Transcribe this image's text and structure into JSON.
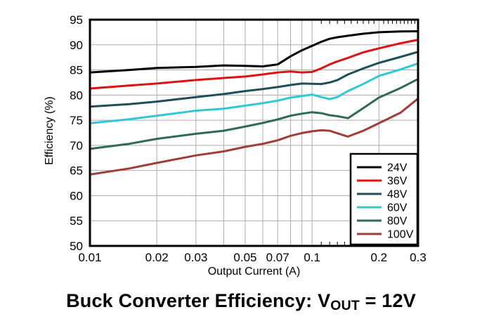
{
  "chart_data": {
    "type": "line",
    "title": {
      "prefix": "Buck Converter Efficiency: V",
      "subscript": "OUT",
      "suffix": " = 12V"
    },
    "xlabel": "Output Current (A)",
    "ylabel": "Efficiency (%)",
    "xscale": "log",
    "xlim": [
      0.01,
      0.3
    ],
    "ylim": [
      50,
      95
    ],
    "grid": true,
    "legend_position": "inside lower right",
    "x_ticks": [
      {
        "v": 0.01,
        "label": "0.01"
      },
      {
        "v": 0.02,
        "label": "0.02"
      },
      {
        "v": 0.03,
        "label": "0.03"
      },
      {
        "v": 0.05,
        "label": "0.05"
      },
      {
        "v": 0.07,
        "label": "0.07"
      },
      {
        "v": 0.1,
        "label": "0.1"
      },
      {
        "v": 0.2,
        "label": "0.2"
      },
      {
        "v": 0.3,
        "label": "0.3"
      }
    ],
    "y_ticks": [
      {
        "v": 50,
        "label": "50"
      },
      {
        "v": 55,
        "label": "55"
      },
      {
        "v": 60,
        "label": "60"
      },
      {
        "v": 65,
        "label": "65"
      },
      {
        "v": 70,
        "label": "70"
      },
      {
        "v": 75,
        "label": "75"
      },
      {
        "v": 80,
        "label": "80"
      },
      {
        "v": 85,
        "label": "85"
      },
      {
        "v": 90,
        "label": "90"
      },
      {
        "v": 95,
        "label": "95"
      }
    ],
    "x_gridlines": [
      0.02,
      0.03,
      0.04,
      0.05,
      0.06,
      0.07,
      0.08,
      0.09,
      0.1,
      0.2
    ],
    "y_gridlines": [
      55,
      60,
      65,
      70,
      75,
      80,
      85,
      90
    ],
    "x_minor_ticks": [
      0.11,
      0.12,
      0.13,
      0.14,
      0.15,
      0.16,
      0.17,
      0.18,
      0.19,
      0.21,
      0.22,
      0.23,
      0.24,
      0.25,
      0.26,
      0.27,
      0.28,
      0.29
    ],
    "x": [
      0.01,
      0.015,
      0.02,
      0.03,
      0.04,
      0.05,
      0.06,
      0.07,
      0.08,
      0.09,
      0.1,
      0.11,
      0.12,
      0.13,
      0.145,
      0.17,
      0.2,
      0.25,
      0.3
    ],
    "series": [
      {
        "name": "24V",
        "color": "#000000",
        "values": [
          84.5,
          85.0,
          85.4,
          85.6,
          85.9,
          85.8,
          85.7,
          86.1,
          87.7,
          88.9,
          89.8,
          90.6,
          91.2,
          91.5,
          91.8,
          92.2,
          92.5,
          92.65,
          92.7
        ]
      },
      {
        "name": "36V",
        "color": "#e01111",
        "values": [
          81.3,
          81.9,
          82.3,
          83.0,
          83.4,
          83.7,
          84.1,
          84.5,
          84.7,
          84.5,
          84.6,
          85.3,
          86.1,
          86.7,
          87.4,
          88.5,
          89.3,
          90.3,
          91.0
        ]
      },
      {
        "name": "48V",
        "color": "#1d4f5a",
        "values": [
          77.7,
          78.2,
          78.7,
          79.6,
          80.2,
          80.8,
          81.2,
          81.6,
          82.0,
          82.3,
          82.25,
          82.2,
          82.5,
          83.0,
          84.1,
          85.3,
          86.4,
          87.6,
          88.6
        ]
      },
      {
        "name": "60V",
        "color": "#30c7d6",
        "values": [
          74.4,
          75.2,
          75.9,
          76.9,
          77.3,
          77.9,
          78.4,
          78.9,
          79.5,
          79.8,
          80.1,
          79.6,
          79.2,
          79.6,
          80.8,
          82.2,
          83.8,
          85.1,
          86.3
        ]
      },
      {
        "name": "80V",
        "color": "#2e6b50",
        "values": [
          69.3,
          70.3,
          71.3,
          72.3,
          72.9,
          73.75,
          74.45,
          75.15,
          75.9,
          76.3,
          76.6,
          76.4,
          76.0,
          75.8,
          75.4,
          77.4,
          79.5,
          81.4,
          83.2
        ]
      },
      {
        "name": "100V",
        "color": "#a03d38",
        "values": [
          64.2,
          65.4,
          66.5,
          68.0,
          68.8,
          69.7,
          70.3,
          71.0,
          71.9,
          72.45,
          72.8,
          73.0,
          72.9,
          72.4,
          71.75,
          72.9,
          74.4,
          76.5,
          79.3
        ]
      }
    ],
    "legend_entries": [
      "24V",
      "36V",
      "48V",
      "60V",
      "80V",
      "100V"
    ]
  },
  "style": {
    "background": "#ffffff",
    "grid_color": "#ababab",
    "frame_color": "#000000",
    "text_color": "#000000"
  }
}
